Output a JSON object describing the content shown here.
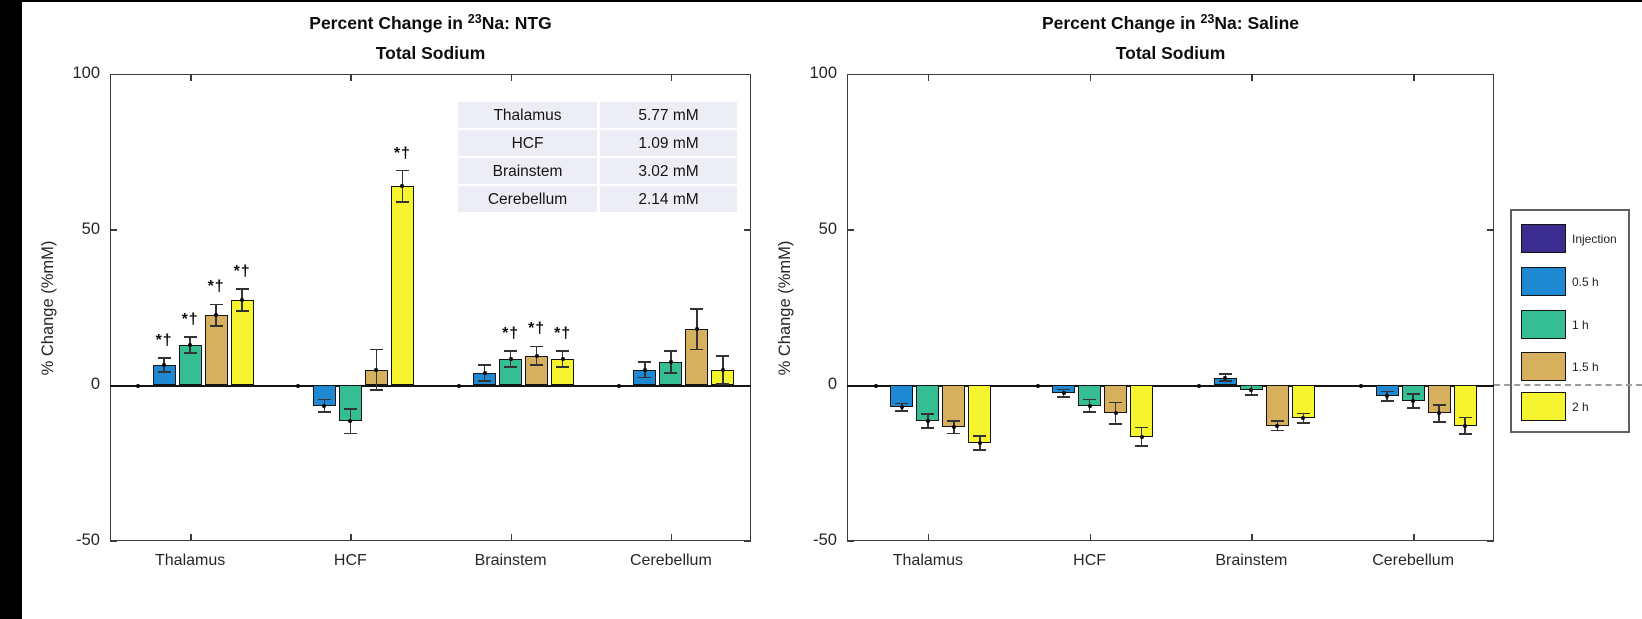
{
  "legend": {
    "position": "right-outside",
    "entries": [
      {
        "label": "Injection",
        "color": "#3B2D8F"
      },
      {
        "label": "0.5 h",
        "color": "#1F88D3"
      },
      {
        "label": "1 h",
        "color": "#35BD93"
      },
      {
        "label": "1.5 h",
        "color": "#D6B05C"
      },
      {
        "label": "2 h",
        "color": "#F5F42F"
      }
    ]
  },
  "chart_data": [
    {
      "type": "bar",
      "title": {
        "prefix": "Percent Change in ",
        "superscript": "23",
        "suffix": "Na: NTG",
        "line2": "Total Sodium"
      },
      "ylabel": "% Change (%mM)",
      "ylim": [
        -50,
        100
      ],
      "yticks": [
        100,
        50,
        0,
        -50
      ],
      "grid": false,
      "annotation_symbol": "*†",
      "categories": [
        "Thalamus",
        "HCF",
        "Brainstem",
        "Cerebellum"
      ],
      "series": [
        {
          "name": "Injection",
          "color": "#3B2D8F",
          "values": [
            0,
            0,
            0,
            0
          ],
          "errors": [
            0,
            0,
            0,
            0
          ],
          "sig": [
            false,
            false,
            false,
            false
          ]
        },
        {
          "name": "0.5 h",
          "color": "#1F88D3",
          "values": [
            6.5,
            -6.5,
            4,
            5
          ],
          "errors": [
            2.2,
            2,
            2.5,
            2.5
          ],
          "sig": [
            true,
            false,
            false,
            false
          ]
        },
        {
          "name": "1 h",
          "color": "#35BD93",
          "values": [
            13,
            -11.5,
            8.5,
            7.5
          ],
          "errors": [
            2.5,
            4,
            2.5,
            3.5
          ],
          "sig": [
            true,
            false,
            true,
            false
          ]
        },
        {
          "name": "1.5 h",
          "color": "#D6B05C",
          "values": [
            22.5,
            5,
            9.5,
            18
          ],
          "errors": [
            3.5,
            6.5,
            3,
            6.5
          ],
          "sig": [
            true,
            false,
            true,
            false
          ]
        },
        {
          "name": "2 h",
          "color": "#F5F42F",
          "values": [
            27.5,
            64,
            8.5,
            5
          ],
          "errors": [
            3.5,
            5,
            2.5,
            4.5
          ],
          "sig": [
            true,
            true,
            true,
            false
          ]
        }
      ],
      "inset_table": {
        "rows": [
          [
            "Thalamus",
            "5.77 mM"
          ],
          [
            "HCF",
            "1.09 mM"
          ],
          [
            "Brainstem",
            "3.02 mM"
          ],
          [
            "Cerebellum",
            "2.14 mM"
          ]
        ]
      }
    },
    {
      "type": "bar",
      "title": {
        "prefix": "Percent Change in ",
        "superscript": "23",
        "suffix": "Na: Saline",
        "line2": "Total Sodium"
      },
      "ylabel": "% Change (%mM)",
      "ylim": [
        -50,
        100
      ],
      "yticks": [
        100,
        50,
        0,
        -50
      ],
      "grid": false,
      "annotation_symbol": "*†",
      "categories": [
        "Thalamus",
        "HCF",
        "Brainstem",
        "Cerebellum"
      ],
      "series": [
        {
          "name": "Injection",
          "color": "#3B2D8F",
          "values": [
            0,
            0,
            0,
            0
          ],
          "errors": [
            0,
            0,
            0,
            0
          ],
          "sig": [
            false,
            false,
            false,
            false
          ]
        },
        {
          "name": "0.5 h",
          "color": "#1F88D3",
          "values": [
            -7,
            -2.5,
            2.5,
            -3.5
          ],
          "errors": [
            1.2,
            1.2,
            1.2,
            1.5
          ],
          "sig": [
            false,
            false,
            false,
            false
          ]
        },
        {
          "name": "1 h",
          "color": "#35BD93",
          "values": [
            -11.5,
            -6.5,
            -1.5,
            -5
          ],
          "errors": [
            2.2,
            2,
            1.5,
            2.2
          ],
          "sig": [
            false,
            false,
            false,
            false
          ]
        },
        {
          "name": "1.5 h",
          "color": "#D6B05C",
          "values": [
            -13.5,
            -9,
            -13,
            -9
          ],
          "errors": [
            2,
            3.5,
            1.5,
            2.7
          ],
          "sig": [
            false,
            false,
            false,
            false
          ]
        },
        {
          "name": "2 h",
          "color": "#F5F42F",
          "values": [
            -18.5,
            -16.5,
            -10.5,
            -13
          ],
          "errors": [
            2.2,
            3,
            1.5,
            2.7
          ],
          "sig": [
            false,
            false,
            false,
            false
          ]
        }
      ]
    }
  ]
}
